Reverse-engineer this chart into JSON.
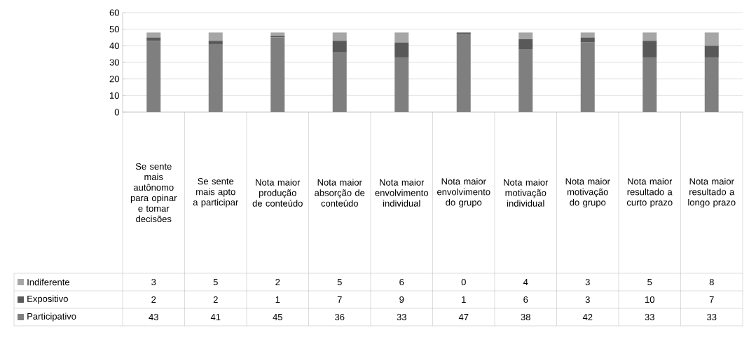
{
  "chart_data": {
    "type": "bar",
    "stacked": true,
    "data_labels": true,
    "legend": "bottom",
    "grid": "y",
    "ylim": [
      0,
      60
    ],
    "yticks": [
      0,
      10,
      20,
      30,
      40,
      50,
      60
    ],
    "categories": [
      "Se sente mais autônomo para opinar e tomar decisões",
      "Se sente mais apto a participar",
      "Nota maior produção de conteúdo",
      "Nota maior absorção de conteúdo",
      "Nota maior envolvimento individual",
      "Nota maior envolvimento do grupo",
      "Nota maior motivação individual",
      "Nota maior motivação do grupo",
      "Nota maior resultado a curto prazo",
      "Nota maior resultado a longo prazo"
    ],
    "series": [
      {
        "name": "Participativo",
        "color": "#7f7f7f",
        "values": [
          43,
          41,
          45,
          36,
          33,
          47,
          38,
          42,
          33,
          33
        ]
      },
      {
        "name": "Expositivo",
        "color": "#595959",
        "values": [
          2,
          2,
          1,
          7,
          9,
          1,
          6,
          3,
          10,
          7
        ]
      },
      {
        "name": "Indiferente",
        "color": "#a6a6a6",
        "values": [
          3,
          5,
          2,
          5,
          6,
          0,
          4,
          3,
          5,
          8
        ]
      }
    ]
  }
}
